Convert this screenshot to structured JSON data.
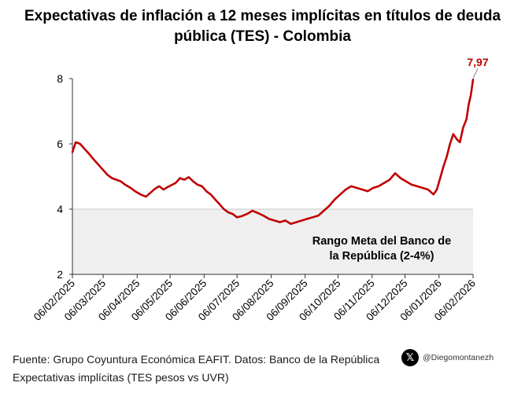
{
  "title": "Expectativas de inflación a 12 meses implícitas en títulos de deuda pública (TES) - Colombia",
  "footer": {
    "source": "Fuente: Grupo Coyuntura Económica EAFIT. Datos: Banco de la República",
    "note": "Expectativas implícitas (TES pesos vs UVR)",
    "handle": "@Diegomontanezh"
  },
  "colors": {
    "line": "#c00000",
    "band": "#efefef",
    "band_border": "#c8c8c8"
  },
  "icons": {
    "social": "x-logo-icon"
  },
  "chart_data": {
    "type": "line",
    "title": "Expectativas de inflación a 12 meses implícitas en títulos de deuda pública (TES) - Colombia",
    "xlabel": "",
    "ylabel": "",
    "ylim": [
      2,
      8
    ],
    "yticks": [
      "2",
      "4",
      "6",
      "8"
    ],
    "xticks": [
      "06/02/2025",
      "06/03/2025",
      "06/04/2025",
      "06/05/2025",
      "06/06/2025",
      "06/07/2025",
      "06/08/2025",
      "06/09/2025",
      "06/10/2025",
      "06/11/2025",
      "06/12/2025",
      "06/01/2026",
      "06/02/2026"
    ],
    "band": {
      "from": 2,
      "to": 4,
      "label_line1": "Rango Meta del Banco de",
      "label_line2": "la República (2-4%)"
    },
    "last_label": "7,97",
    "grid": false,
    "series": [
      {
        "x": [
          "2025-02-06",
          "2025-02-09",
          "2025-02-13",
          "2025-02-17",
          "2025-02-21",
          "2025-02-26",
          "2025-03-02",
          "2025-03-06",
          "2025-03-10",
          "2025-03-14",
          "2025-03-18",
          "2025-03-22",
          "2025-03-26",
          "2025-03-31",
          "2025-04-04",
          "2025-04-09",
          "2025-04-14",
          "2025-04-18",
          "2025-04-22",
          "2025-04-26",
          "2025-04-30",
          "2025-05-04",
          "2025-05-08",
          "2025-05-11",
          "2025-05-15",
          "2025-05-19",
          "2025-05-23",
          "2025-05-27",
          "2025-05-31",
          "2025-06-04",
          "2025-06-08",
          "2025-06-12",
          "2025-06-16",
          "2025-06-20",
          "2025-06-24",
          "2025-06-28",
          "2025-07-02",
          "2025-07-06",
          "2025-07-10",
          "2025-07-15",
          "2025-07-20",
          "2025-07-25",
          "2025-07-30",
          "2025-08-04",
          "2025-08-09",
          "2025-08-14",
          "2025-08-19",
          "2025-08-24",
          "2025-08-29",
          "2025-09-03",
          "2025-09-08",
          "2025-09-13",
          "2025-09-18",
          "2025-09-23",
          "2025-09-28",
          "2025-10-03",
          "2025-10-08",
          "2025-10-13",
          "2025-10-18",
          "2025-10-23",
          "2025-10-28",
          "2025-11-02",
          "2025-11-07",
          "2025-11-12",
          "2025-11-17",
          "2025-11-22",
          "2025-11-27",
          "2025-12-02",
          "2025-12-07",
          "2025-12-12",
          "2025-12-17",
          "2025-12-22",
          "2025-12-27",
          "2026-01-01",
          "2026-01-04",
          "2026-01-07",
          "2026-01-10",
          "2026-01-13",
          "2026-01-16",
          "2026-01-19",
          "2026-01-22",
          "2026-01-25",
          "2026-01-28",
          "2026-01-31",
          "2026-02-02",
          "2026-02-04",
          "2026-02-06"
        ],
        "values": [
          5.75,
          6.05,
          6.0,
          5.85,
          5.7,
          5.5,
          5.35,
          5.2,
          5.05,
          4.95,
          4.9,
          4.85,
          4.75,
          4.65,
          4.55,
          4.45,
          4.38,
          4.5,
          4.62,
          4.7,
          4.6,
          4.68,
          4.75,
          4.8,
          4.95,
          4.9,
          4.98,
          4.85,
          4.75,
          4.7,
          4.55,
          4.45,
          4.3,
          4.15,
          4.0,
          3.9,
          3.85,
          3.75,
          3.78,
          3.85,
          3.95,
          3.88,
          3.8,
          3.7,
          3.65,
          3.6,
          3.65,
          3.55,
          3.6,
          3.65,
          3.7,
          3.75,
          3.8,
          3.95,
          4.1,
          4.3,
          4.45,
          4.6,
          4.7,
          4.65,
          4.6,
          4.55,
          4.65,
          4.7,
          4.8,
          4.9,
          5.1,
          4.95,
          4.85,
          4.75,
          4.7,
          4.65,
          4.6,
          4.45,
          4.6,
          4.95,
          5.3,
          5.6,
          6.0,
          6.3,
          6.15,
          6.05,
          6.5,
          6.75,
          7.2,
          7.5,
          7.97
        ]
      }
    ]
  }
}
